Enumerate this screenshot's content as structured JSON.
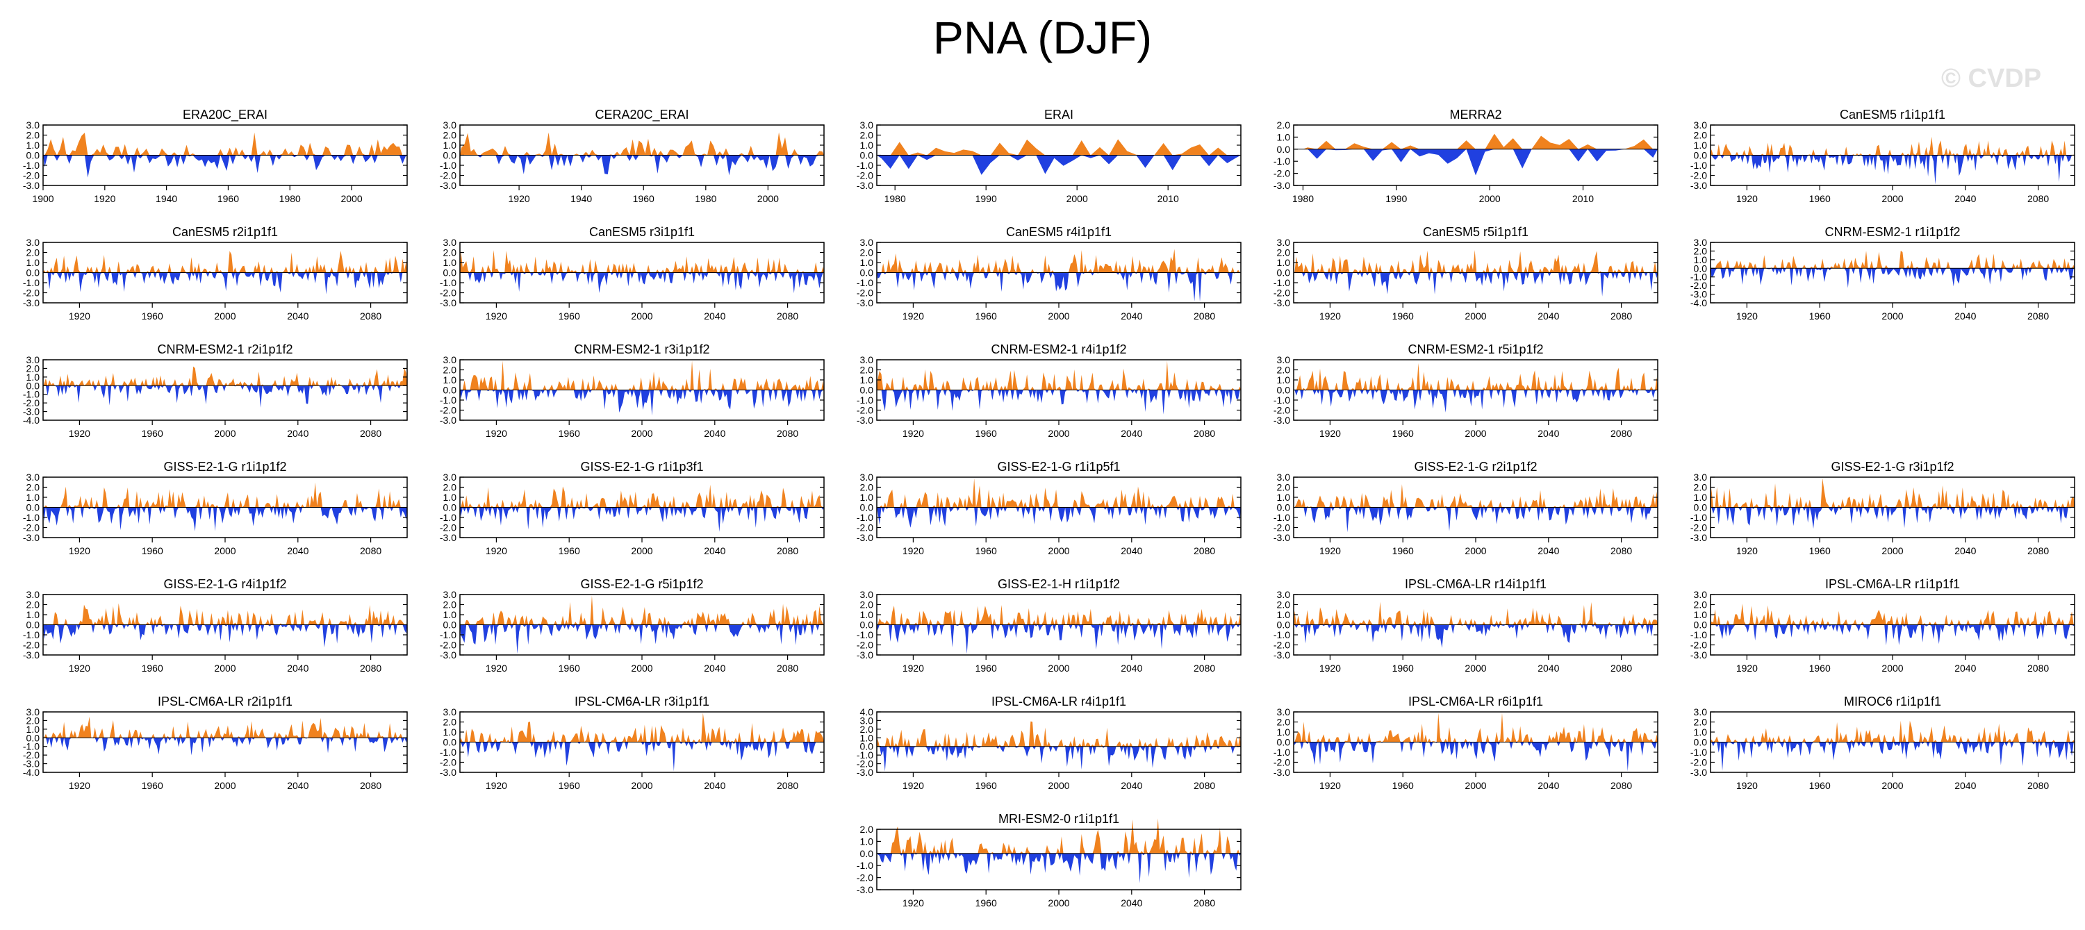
{
  "page": {
    "title": "PNA (DJF)",
    "watermark": "© CVDP"
  },
  "colors": {
    "positive": "#f0821e",
    "negative": "#2040e0",
    "axis": "#000000",
    "zero_line": "#000000"
  },
  "chart_data": [
    {
      "type": "area",
      "title": "ERA20C_ERAI",
      "xlim": [
        1900,
        2018
      ],
      "xticks": [
        "1900",
        "1920",
        "1940",
        "1960",
        "1980",
        "2000"
      ],
      "ylim": [
        -3,
        3
      ],
      "yticks": [
        "3.0",
        "2.0",
        "1.0",
        "0.0",
        "-1.0",
        "-2.0",
        "-3.0"
      ],
      "series_start": 1900,
      "series_length": 118,
      "seed": 11
    },
    {
      "type": "area",
      "title": "CERA20C_ERAI",
      "xlim": [
        1901,
        2018
      ],
      "xticks": [
        "1920",
        "1940",
        "1960",
        "1980",
        "2000"
      ],
      "ylim": [
        -3,
        3
      ],
      "yticks": [
        "3.0",
        "2.0",
        "1.0",
        "0.0",
        "-1.0",
        "-2.0",
        "-3.0"
      ],
      "series_start": 1901,
      "series_length": 117,
      "seed": 12
    },
    {
      "type": "area",
      "title": "ERAI",
      "xlim": [
        1978,
        2018
      ],
      "xticks": [
        "1980",
        "1990",
        "2000",
        "2010"
      ],
      "ylim": [
        -3,
        3
      ],
      "yticks": [
        "3.0",
        "2.0",
        "1.0",
        "0.0",
        "-1.0",
        "-2.0",
        "-3.0"
      ],
      "series_start": 1978,
      "series_length": 40,
      "seed": 13
    },
    {
      "type": "area",
      "title": "MERRA2",
      "xlim": [
        1979,
        2018
      ],
      "xticks": [
        "1980",
        "1990",
        "2000",
        "2010"
      ],
      "ylim": [
        -3,
        2
      ],
      "yticks": [
        "2.0",
        "1.0",
        "0.0",
        "-1.0",
        "-2.0",
        "-3.0"
      ],
      "series_start": 1980,
      "series_length": 38,
      "seed": 14
    },
    {
      "type": "area",
      "title": "CanESM5 r1i1p1f1",
      "xlim": [
        1900,
        2100
      ],
      "xticks": [
        "1920",
        "1960",
        "2000",
        "2040",
        "2080"
      ],
      "ylim": [
        -3,
        3
      ],
      "yticks": [
        "3.0",
        "2.0",
        "1.0",
        "0.0",
        "-1.0",
        "-2.0",
        "-3.0"
      ],
      "series_start": 1900,
      "series_length": 200,
      "seed": 15
    },
    {
      "type": "area",
      "title": "CanESM5 r2i1p1f1",
      "xlim": [
        1900,
        2100
      ],
      "xticks": [
        "1920",
        "1960",
        "2000",
        "2040",
        "2080"
      ],
      "ylim": [
        -3,
        3
      ],
      "yticks": [
        "3.0",
        "2.0",
        "1.0",
        "0.0",
        "-1.0",
        "-2.0",
        "-3.0"
      ],
      "series_start": 1900,
      "series_length": 200,
      "seed": 21
    },
    {
      "type": "area",
      "title": "CanESM5 r3i1p1f1",
      "xlim": [
        1900,
        2100
      ],
      "xticks": [
        "1920",
        "1960",
        "2000",
        "2040",
        "2080"
      ],
      "ylim": [
        -3,
        3
      ],
      "yticks": [
        "3.0",
        "2.0",
        "1.0",
        "0.0",
        "-1.0",
        "-2.0",
        "-3.0"
      ],
      "series_start": 1900,
      "series_length": 200,
      "seed": 22
    },
    {
      "type": "area",
      "title": "CanESM5 r4i1p1f1",
      "xlim": [
        1900,
        2100
      ],
      "xticks": [
        "1920",
        "1960",
        "2000",
        "2040",
        "2080"
      ],
      "ylim": [
        -3,
        3
      ],
      "yticks": [
        "3.0",
        "2.0",
        "1.0",
        "0.0",
        "-1.0",
        "-2.0",
        "-3.0"
      ],
      "series_start": 1900,
      "series_length": 200,
      "seed": 23
    },
    {
      "type": "area",
      "title": "CanESM5 r5i1p1f1",
      "xlim": [
        1900,
        2100
      ],
      "xticks": [
        "1920",
        "1960",
        "2000",
        "2040",
        "2080"
      ],
      "ylim": [
        -3,
        3
      ],
      "yticks": [
        "3.0",
        "2.0",
        "1.0",
        "0.0",
        "-1.0",
        "-2.0",
        "-3.0"
      ],
      "series_start": 1900,
      "series_length": 200,
      "seed": 24
    },
    {
      "type": "area",
      "title": "CNRM-ESM2-1 r1i1p1f2",
      "xlim": [
        1900,
        2100
      ],
      "xticks": [
        "1920",
        "1960",
        "2000",
        "2040",
        "2080"
      ],
      "ylim": [
        -4,
        3
      ],
      "yticks": [
        "3.0",
        "2.0",
        "1.0",
        "0.0",
        "-1.0",
        "-2.0",
        "-3.0",
        "-4.0"
      ],
      "series_start": 1900,
      "series_length": 200,
      "seed": 25
    },
    {
      "type": "area",
      "title": "CNRM-ESM2-1 r2i1p1f2",
      "xlim": [
        1900,
        2100
      ],
      "xticks": [
        "1920",
        "1960",
        "2000",
        "2040",
        "2080"
      ],
      "ylim": [
        -4,
        3
      ],
      "yticks": [
        "3.0",
        "2.0",
        "1.0",
        "0.0",
        "-1.0",
        "-2.0",
        "-3.0",
        "-4.0"
      ],
      "series_start": 1900,
      "series_length": 200,
      "seed": 31
    },
    {
      "type": "area",
      "title": "CNRM-ESM2-1 r3i1p1f2",
      "xlim": [
        1900,
        2100
      ],
      "xticks": [
        "1920",
        "1960",
        "2000",
        "2040",
        "2080"
      ],
      "ylim": [
        -3,
        3
      ],
      "yticks": [
        "3.0",
        "2.0",
        "1.0",
        "0.0",
        "-1.0",
        "-2.0",
        "-3.0"
      ],
      "series_start": 1900,
      "series_length": 200,
      "seed": 32
    },
    {
      "type": "area",
      "title": "CNRM-ESM2-1 r4i1p1f2",
      "xlim": [
        1900,
        2100
      ],
      "xticks": [
        "1920",
        "1960",
        "2000",
        "2040",
        "2080"
      ],
      "ylim": [
        -3,
        3
      ],
      "yticks": [
        "3.0",
        "2.0",
        "1.0",
        "0.0",
        "-1.0",
        "-2.0",
        "-3.0"
      ],
      "series_start": 1900,
      "series_length": 200,
      "seed": 33
    },
    {
      "type": "area",
      "title": "CNRM-ESM2-1 r5i1p1f2",
      "xlim": [
        1900,
        2100
      ],
      "xticks": [
        "1920",
        "1960",
        "2000",
        "2040",
        "2080"
      ],
      "ylim": [
        -3,
        3
      ],
      "yticks": [
        "3.0",
        "2.0",
        "1.0",
        "0.0",
        "-1.0",
        "-2.0",
        "-3.0"
      ],
      "series_start": 1900,
      "series_length": 200,
      "seed": 34
    },
    {
      "type": "area",
      "title": "GISS-E2-1-G r1i1p1f2",
      "xlim": [
        1900,
        2100
      ],
      "xticks": [
        "1920",
        "1960",
        "2000",
        "2040",
        "2080"
      ],
      "ylim": [
        -3,
        3
      ],
      "yticks": [
        "3.0",
        "2.0",
        "1.0",
        "0.0",
        "-1.0",
        "-2.0",
        "-3.0"
      ],
      "series_start": 1900,
      "series_length": 200,
      "seed": 41
    },
    {
      "type": "area",
      "title": "GISS-E2-1-G r1i1p3f1",
      "xlim": [
        1900,
        2100
      ],
      "xticks": [
        "1920",
        "1960",
        "2000",
        "2040",
        "2080"
      ],
      "ylim": [
        -3,
        3
      ],
      "yticks": [
        "3.0",
        "2.0",
        "1.0",
        "0.0",
        "-1.0",
        "-2.0",
        "-3.0"
      ],
      "series_start": 1900,
      "series_length": 200,
      "seed": 42
    },
    {
      "type": "area",
      "title": "GISS-E2-1-G r1i1p5f1",
      "xlim": [
        1900,
        2100
      ],
      "xticks": [
        "1920",
        "1960",
        "2000",
        "2040",
        "2080"
      ],
      "ylim": [
        -3,
        3
      ],
      "yticks": [
        "3.0",
        "2.0",
        "1.0",
        "0.0",
        "-1.0",
        "-2.0",
        "-3.0"
      ],
      "series_start": 1900,
      "series_length": 200,
      "seed": 43
    },
    {
      "type": "area",
      "title": "GISS-E2-1-G r2i1p1f2",
      "xlim": [
        1900,
        2100
      ],
      "xticks": [
        "1920",
        "1960",
        "2000",
        "2040",
        "2080"
      ],
      "ylim": [
        -3,
        3
      ],
      "yticks": [
        "3.0",
        "2.0",
        "1.0",
        "0.0",
        "-1.0",
        "-2.0",
        "-3.0"
      ],
      "series_start": 1900,
      "series_length": 200,
      "seed": 44
    },
    {
      "type": "area",
      "title": "GISS-E2-1-G r3i1p1f2",
      "xlim": [
        1900,
        2100
      ],
      "xticks": [
        "1920",
        "1960",
        "2000",
        "2040",
        "2080"
      ],
      "ylim": [
        -3,
        3
      ],
      "yticks": [
        "3.0",
        "2.0",
        "1.0",
        "0.0",
        "-1.0",
        "-2.0",
        "-3.0"
      ],
      "series_start": 1900,
      "series_length": 200,
      "seed": 45
    },
    {
      "type": "area",
      "title": "GISS-E2-1-G r4i1p1f2",
      "xlim": [
        1900,
        2100
      ],
      "xticks": [
        "1920",
        "1960",
        "2000",
        "2040",
        "2080"
      ],
      "ylim": [
        -3,
        3
      ],
      "yticks": [
        "3.0",
        "2.0",
        "1.0",
        "0.0",
        "-1.0",
        "-2.0",
        "-3.0"
      ],
      "series_start": 1900,
      "series_length": 200,
      "seed": 51
    },
    {
      "type": "area",
      "title": "GISS-E2-1-G r5i1p1f2",
      "xlim": [
        1900,
        2100
      ],
      "xticks": [
        "1920",
        "1960",
        "2000",
        "2040",
        "2080"
      ],
      "ylim": [
        -3,
        3
      ],
      "yticks": [
        "3.0",
        "2.0",
        "1.0",
        "0.0",
        "-1.0",
        "-2.0",
        "-3.0"
      ],
      "series_start": 1900,
      "series_length": 200,
      "seed": 52
    },
    {
      "type": "area",
      "title": "GISS-E2-1-H r1i1p1f2",
      "xlim": [
        1900,
        2100
      ],
      "xticks": [
        "1920",
        "1960",
        "2000",
        "2040",
        "2080"
      ],
      "ylim": [
        -3,
        3
      ],
      "yticks": [
        "3.0",
        "2.0",
        "1.0",
        "0.0",
        "-1.0",
        "-2.0",
        "-3.0"
      ],
      "series_start": 1900,
      "series_length": 200,
      "seed": 53
    },
    {
      "type": "area",
      "title": "IPSL-CM6A-LR r14i1p1f1",
      "xlim": [
        1900,
        2100
      ],
      "xticks": [
        "1920",
        "1960",
        "2000",
        "2040",
        "2080"
      ],
      "ylim": [
        -3,
        3
      ],
      "yticks": [
        "3.0",
        "2.0",
        "1.0",
        "0.0",
        "-1.0",
        "-2.0",
        "-3.0"
      ],
      "series_start": 1900,
      "series_length": 200,
      "seed": 54
    },
    {
      "type": "area",
      "title": "IPSL-CM6A-LR r1i1p1f1",
      "xlim": [
        1900,
        2100
      ],
      "xticks": [
        "1920",
        "1960",
        "2000",
        "2040",
        "2080"
      ],
      "ylim": [
        -3,
        3
      ],
      "yticks": [
        "3.0",
        "2.0",
        "1.0",
        "0.0",
        "-1.0",
        "-2.0",
        "-3.0"
      ],
      "series_start": 1900,
      "series_length": 200,
      "seed": 55
    },
    {
      "type": "area",
      "title": "IPSL-CM6A-LR r2i1p1f1",
      "xlim": [
        1900,
        2100
      ],
      "xticks": [
        "1920",
        "1960",
        "2000",
        "2040",
        "2080"
      ],
      "ylim": [
        -4,
        3
      ],
      "yticks": [
        "3.0",
        "2.0",
        "1.0",
        "0.0",
        "-1.0",
        "-2.0",
        "-3.0",
        "-4.0"
      ],
      "series_start": 1900,
      "series_length": 200,
      "seed": 61
    },
    {
      "type": "area",
      "title": "IPSL-CM6A-LR r3i1p1f1",
      "xlim": [
        1900,
        2100
      ],
      "xticks": [
        "1920",
        "1960",
        "2000",
        "2040",
        "2080"
      ],
      "ylim": [
        -3,
        3
      ],
      "yticks": [
        "3.0",
        "2.0",
        "1.0",
        "0.0",
        "-1.0",
        "-2.0",
        "-3.0"
      ],
      "series_start": 1900,
      "series_length": 200,
      "seed": 62
    },
    {
      "type": "area",
      "title": "IPSL-CM6A-LR r4i1p1f1",
      "xlim": [
        1900,
        2100
      ],
      "xticks": [
        "1920",
        "1960",
        "2000",
        "2040",
        "2080"
      ],
      "ylim": [
        -3,
        4
      ],
      "yticks": [
        "4.0",
        "3.0",
        "2.0",
        "1.0",
        "0.0",
        "-1.0",
        "-2.0",
        "-3.0"
      ],
      "series_start": 1900,
      "series_length": 200,
      "seed": 63
    },
    {
      "type": "area",
      "title": "IPSL-CM6A-LR r6i1p1f1",
      "xlim": [
        1900,
        2100
      ],
      "xticks": [
        "1920",
        "1960",
        "2000",
        "2040",
        "2080"
      ],
      "ylim": [
        -3,
        3
      ],
      "yticks": [
        "3.0",
        "2.0",
        "1.0",
        "0.0",
        "-1.0",
        "-2.0",
        "-3.0"
      ],
      "series_start": 1900,
      "series_length": 200,
      "seed": 64
    },
    {
      "type": "area",
      "title": "MIROC6 r1i1p1f1",
      "xlim": [
        1900,
        2100
      ],
      "xticks": [
        "1920",
        "1960",
        "2000",
        "2040",
        "2080"
      ],
      "ylim": [
        -3,
        3
      ],
      "yticks": [
        "3.0",
        "2.0",
        "1.0",
        "0.0",
        "-1.0",
        "-2.0",
        "-3.0"
      ],
      "series_start": 1900,
      "series_length": 200,
      "seed": 65
    },
    {
      "type": "area",
      "title": "MRI-ESM2-0 r1i1p1f1",
      "xlim": [
        1900,
        2100
      ],
      "xticks": [
        "1920",
        "1960",
        "2000",
        "2040",
        "2080"
      ],
      "ylim": [
        -3,
        2
      ],
      "yticks": [
        "2.0",
        "1.0",
        "0.0",
        "-1.0",
        "-2.0",
        "-3.0"
      ],
      "series_start": 1900,
      "series_length": 200,
      "seed": 71
    }
  ]
}
